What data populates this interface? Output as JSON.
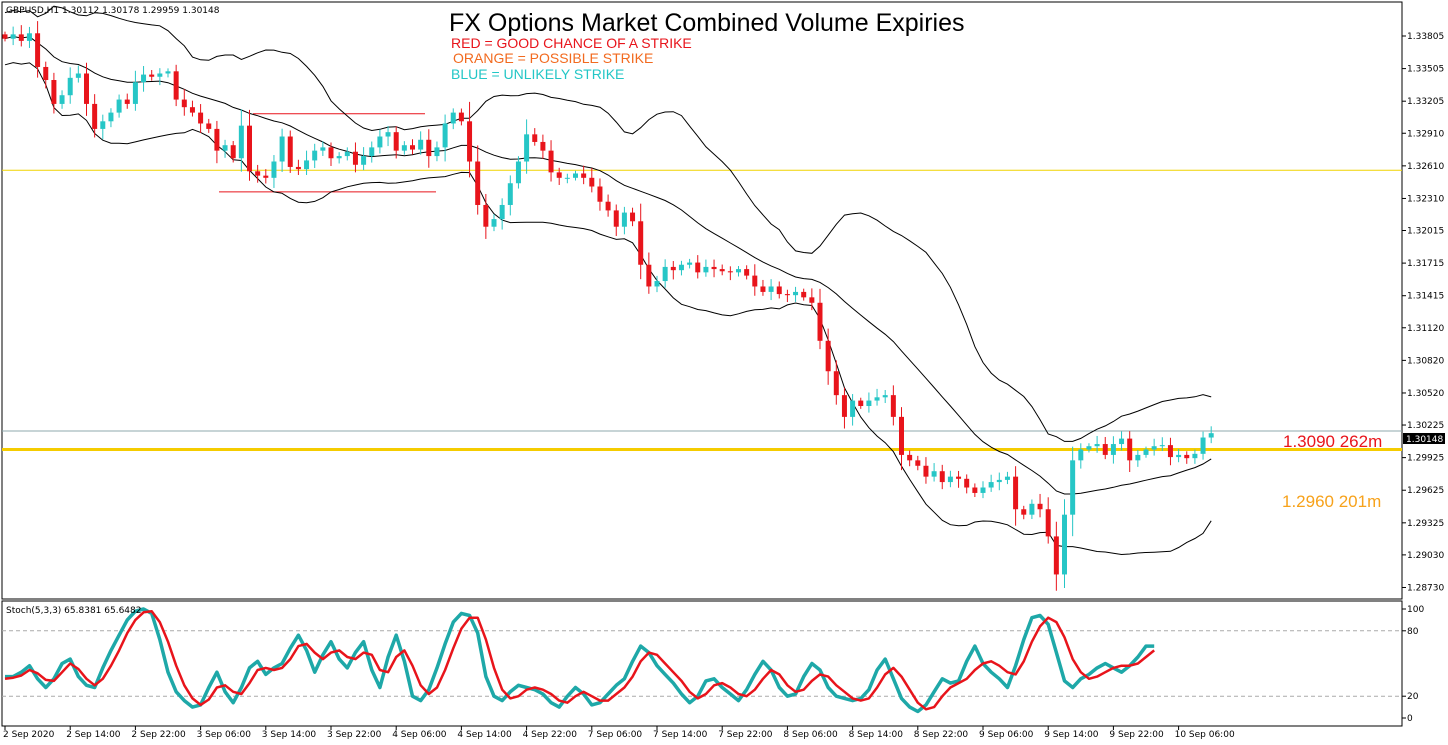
{
  "header": {
    "symbol_info": "GBPUSD,H1  1.30112 1.30178 1.29959 1.30148",
    "title": "FX Options Market Combined Volume Expiries",
    "legend": [
      {
        "text": "RED = GOOD CHANCE OF A STRIKE",
        "color": "#e8141b"
      },
      {
        "text": "ORANGE = POSSIBLE STRIKE",
        "color": "#f26a1f"
      },
      {
        "text": "BLUE = UNLIKELY STRIKE",
        "color": "#23c6c6"
      }
    ]
  },
  "expiry_labels": [
    {
      "text": "1.3090 262m",
      "color": "#e8141b"
    },
    {
      "text": "1.2960 201m",
      "color": "#f7a21b"
    }
  ],
  "chart_data": [
    {
      "type": "candlestick",
      "symbol": "GBPUSD",
      "timeframe": "H1",
      "ohlc_last": {
        "open": 1.30112,
        "high": 1.30178,
        "low": 1.29959,
        "close": 1.30148
      },
      "current_price_label": "1.30148",
      "y_ticks": [
        "1.33805",
        "1.33505",
        "1.33205",
        "1.32910",
        "1.32610",
        "1.32310",
        "1.32015",
        "1.31715",
        "1.31415",
        "1.31120",
        "1.30820",
        "1.30520",
        "1.30225",
        "1.29925",
        "1.29625",
        "1.29325",
        "1.29030",
        "1.28730"
      ],
      "y_tick_values": [
        1.33805,
        1.33505,
        1.33205,
        1.3291,
        1.3261,
        1.3231,
        1.32015,
        1.31715,
        1.31415,
        1.3112,
        1.3082,
        1.3052,
        1.30225,
        1.29925,
        1.29625,
        1.29325,
        1.2903,
        1.2873
      ],
      "x_tick_labels": [
        "2 Sep 2020",
        "2 Sep 14:00",
        "2 Sep 22:00",
        "3 Sep 06:00",
        "3 Sep 14:00",
        "3 Sep 22:00",
        "4 Sep 06:00",
        "4 Sep 14:00",
        "4 Sep 22:00",
        "7 Sep 06:00",
        "7 Sep 14:00",
        "7 Sep 22:00",
        "8 Sep 06:00",
        "8 Sep 14:00",
        "8 Sep 22:00",
        "9 Sep 06:00",
        "9 Sep 14:00",
        "9 Sep 22:00",
        "10 Sep 06:00"
      ],
      "x_tick_candle_index": [
        0,
        8,
        16,
        24,
        32,
        40,
        48,
        56,
        64,
        72,
        80,
        88,
        96,
        104,
        112,
        120,
        128,
        136,
        144
      ],
      "overlays": {
        "bollinger_bands": true,
        "horizontal_lines": [
          {
            "price": 1.3257,
            "color": "#f0d400"
          },
          {
            "price": 1.3017,
            "color": "#8fa8ae"
          },
          {
            "price": 1.3,
            "color": "#f5cc00"
          }
        ],
        "range_box": {
          "top": 1.3309,
          "bottom": 1.3237,
          "color": "#e8141b"
        }
      },
      "close_series": [
        1.3378,
        1.3382,
        1.3376,
        1.3383,
        1.3352,
        1.334,
        1.3318,
        1.3326,
        1.3342,
        1.3346,
        1.3318,
        1.3295,
        1.3302,
        1.331,
        1.3322,
        1.3318,
        1.3338,
        1.3345,
        1.3343,
        1.3346,
        1.3348,
        1.3322,
        1.3315,
        1.331,
        1.33,
        1.3295,
        1.3275,
        1.328,
        1.3268,
        1.3298,
        1.3256,
        1.3252,
        1.325,
        1.3265,
        1.3288,
        1.326,
        1.3258,
        1.3266,
        1.3275,
        1.3278,
        1.3268,
        1.327,
        1.3274,
        1.3262,
        1.327,
        1.3278,
        1.3288,
        1.3292,
        1.3275,
        1.328,
        1.3276,
        1.3285,
        1.327,
        1.3278,
        1.33,
        1.331,
        1.3302,
        1.3265,
        1.3225,
        1.3205,
        1.3212,
        1.3225,
        1.3245,
        1.3265,
        1.329,
        1.3283,
        1.3275,
        1.3255,
        1.325,
        1.325,
        1.3254,
        1.325,
        1.3242,
        1.3228,
        1.322,
        1.3205,
        1.3218,
        1.321,
        1.317,
        1.315,
        1.3155,
        1.3168,
        1.3165,
        1.317,
        1.3172,
        1.3163,
        1.3168,
        1.3166,
        1.3164,
        1.3163,
        1.3166,
        1.316,
        1.315,
        1.3145,
        1.315,
        1.3143,
        1.3142,
        1.3145,
        1.314,
        1.3135,
        1.31,
        1.3072,
        1.305,
        1.303,
        1.3045,
        1.304,
        1.3045,
        1.3048,
        1.305,
        1.303,
        1.2995,
        1.299,
        1.2985,
        1.2975,
        1.298,
        1.297,
        1.2975,
        1.2973,
        1.2965,
        1.296,
        1.2965,
        1.297,
        1.2972,
        1.2975,
        1.2945,
        1.294,
        1.295,
        1.2945,
        1.292,
        1.2885,
        1.294,
        1.299,
        1.3,
        1.3003,
        1.3005,
        1.2995,
        1.3005,
        1.301,
        1.299,
        1.2995,
        1.3,
        1.3003,
        1.3004,
        1.2993,
        1.2995,
        1.2992,
        1.2996,
        1.3011,
        1.3015
      ]
    },
    {
      "type": "line",
      "indicator": "Stochastic Oscillator",
      "label": "Stoch(5,3,3) 65.8381 65.6482",
      "y_ticks": [
        "100",
        "80",
        "20",
        "0"
      ],
      "ylim": [
        0,
        100
      ],
      "levels": [
        20,
        80
      ],
      "series": [
        {
          "color": "#1ea8a8",
          "values": [
            38,
            38,
            42,
            48,
            36,
            28,
            36,
            50,
            54,
            38,
            30,
            28,
            46,
            62,
            76,
            90,
            98,
            100,
            96,
            72,
            42,
            24,
            16,
            10,
            12,
            28,
            42,
            24,
            14,
            28,
            46,
            52,
            40,
            46,
            50,
            64,
            76,
            62,
            42,
            58,
            70,
            54,
            46,
            60,
            70,
            44,
            28,
            56,
            76,
            52,
            20,
            16,
            26,
            46,
            68,
            88,
            96,
            94,
            78,
            38,
            20,
            16,
            24,
            30,
            28,
            26,
            22,
            14,
            10,
            20,
            28,
            22,
            12,
            14,
            22,
            30,
            36,
            52,
            66,
            60,
            48,
            40,
            32,
            22,
            14,
            20,
            34,
            36,
            28,
            22,
            16,
            26,
            40,
            52,
            44,
            28,
            20,
            22,
            38,
            50,
            44,
            28,
            20,
            18,
            16,
            18,
            26,
            44,
            54,
            36,
            18,
            10,
            6,
            12,
            24,
            36,
            32,
            34,
            52,
            66,
            50,
            42,
            36,
            28,
            48,
            72,
            92,
            94,
            86,
            60,
            34,
            28,
            36,
            40,
            46,
            50,
            46,
            42,
            48,
            56,
            66,
            66
          ]
        },
        {
          "color": "#e8141b",
          "values": [
            36,
            37,
            39,
            44,
            41,
            35,
            34,
            42,
            50,
            45,
            36,
            30,
            36,
            48,
            62,
            78,
            90,
            97,
            98,
            88,
            70,
            48,
            30,
            18,
            12,
            17,
            28,
            30,
            24,
            22,
            32,
            44,
            46,
            44,
            46,
            54,
            66,
            68,
            60,
            54,
            60,
            62,
            56,
            54,
            60,
            58,
            44,
            42,
            56,
            62,
            48,
            30,
            22,
            28,
            44,
            64,
            82,
            92,
            92,
            72,
            46,
            26,
            18,
            20,
            26,
            28,
            26,
            22,
            16,
            14,
            20,
            24,
            20,
            16,
            16,
            22,
            28,
            38,
            52,
            60,
            58,
            50,
            42,
            34,
            24,
            18,
            22,
            30,
            32,
            28,
            22,
            20,
            26,
            36,
            44,
            40,
            30,
            24,
            26,
            34,
            40,
            38,
            30,
            24,
            18,
            16,
            18,
            28,
            40,
            46,
            38,
            26,
            14,
            8,
            10,
            20,
            28,
            32,
            36,
            44,
            50,
            52,
            48,
            42,
            40,
            52,
            70,
            84,
            92,
            88,
            74,
            54,
            42,
            36,
            38,
            42,
            46,
            48,
            48,
            50,
            56,
            62
          ]
        }
      ]
    }
  ]
}
